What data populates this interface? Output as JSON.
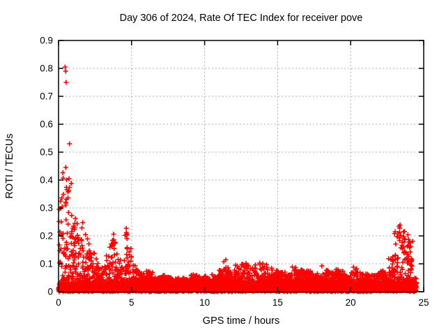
{
  "chart_data": {
    "type": "scatter",
    "title": "Day 306 of 2024, Rate Of TEC Index for receiver pove",
    "xlabel": "GPS time / hours",
    "ylabel": "ROTI / TECUs",
    "xlim": [
      0,
      25
    ],
    "ylim": [
      0,
      0.9
    ],
    "xticks": [
      0,
      5,
      10,
      15,
      20,
      25
    ],
    "xtick_labels": [
      "0",
      "5",
      "10",
      "15",
      "20",
      "25"
    ],
    "yticks": [
      0,
      0.1,
      0.2,
      0.3,
      0.4,
      0.5,
      0.6,
      0.7,
      0.8,
      0.9
    ],
    "ytick_labels": [
      "0",
      "0.1",
      "0.2",
      "0.3",
      "0.4",
      "0.5",
      "0.6",
      "0.7",
      "0.8",
      "0.9"
    ],
    "grid": true,
    "legend": "none",
    "marker": "plus",
    "marker_color": "#ff0000",
    "grid_color": "#b0b0b0",
    "border_color": "#000000",
    "background_color": "#ffffff",
    "data_start_hour": 0.0,
    "data_end_hour": 24.3,
    "base_band": {
      "min": 0.0,
      "max": 0.035,
      "note": "dense solid band of points along the bottom for all hours"
    },
    "bin_width_hours": 0.25,
    "envelope_max_roti_per_bin": [
      [
        0.0,
        0.38
      ],
      [
        0.25,
        0.45
      ],
      [
        0.5,
        0.42
      ],
      [
        0.75,
        0.4
      ],
      [
        1.0,
        0.33
      ],
      [
        1.25,
        0.28
      ],
      [
        1.5,
        0.25
      ],
      [
        1.75,
        0.21
      ],
      [
        2.0,
        0.18
      ],
      [
        2.25,
        0.15
      ],
      [
        2.5,
        0.12
      ],
      [
        2.75,
        0.09
      ],
      [
        3.0,
        0.09
      ],
      [
        3.25,
        0.13
      ],
      [
        3.5,
        0.2
      ],
      [
        3.75,
        0.22
      ],
      [
        4.0,
        0.12
      ],
      [
        4.25,
        0.1
      ],
      [
        4.5,
        0.235
      ],
      [
        4.75,
        0.16
      ],
      [
        5.0,
        0.12
      ],
      [
        5.25,
        0.08
      ],
      [
        5.5,
        0.07
      ],
      [
        5.75,
        0.065
      ],
      [
        6.0,
        0.075
      ],
      [
        6.25,
        0.07
      ],
      [
        6.5,
        0.055
      ],
      [
        6.75,
        0.05
      ],
      [
        7.0,
        0.06
      ],
      [
        7.25,
        0.055
      ],
      [
        7.5,
        0.055
      ],
      [
        7.75,
        0.05
      ],
      [
        8.0,
        0.05
      ],
      [
        8.25,
        0.045
      ],
      [
        8.5,
        0.05
      ],
      [
        8.75,
        0.045
      ],
      [
        9.0,
        0.065
      ],
      [
        9.25,
        0.06
      ],
      [
        9.5,
        0.055
      ],
      [
        9.75,
        0.05
      ],
      [
        10.0,
        0.06
      ],
      [
        10.25,
        0.055
      ],
      [
        10.5,
        0.065
      ],
      [
        10.75,
        0.06
      ],
      [
        11.0,
        0.08
      ],
      [
        11.25,
        0.115
      ],
      [
        11.5,
        0.09
      ],
      [
        11.75,
        0.085
      ],
      [
        12.0,
        0.095
      ],
      [
        12.25,
        0.09
      ],
      [
        12.5,
        0.1
      ],
      [
        12.75,
        0.12
      ],
      [
        13.0,
        0.1
      ],
      [
        13.25,
        0.105
      ],
      [
        13.5,
        0.09
      ],
      [
        13.75,
        0.105
      ],
      [
        14.0,
        0.1
      ],
      [
        14.25,
        0.09
      ],
      [
        14.5,
        0.085
      ],
      [
        14.75,
        0.08
      ],
      [
        15.0,
        0.075
      ],
      [
        15.25,
        0.07
      ],
      [
        15.5,
        0.07
      ],
      [
        15.75,
        0.065
      ],
      [
        16.0,
        0.09
      ],
      [
        16.25,
        0.08
      ],
      [
        16.5,
        0.085
      ],
      [
        16.75,
        0.075
      ],
      [
        17.0,
        0.075
      ],
      [
        17.25,
        0.07
      ],
      [
        17.5,
        0.065
      ],
      [
        17.75,
        0.06
      ],
      [
        18.0,
        0.1
      ],
      [
        18.25,
        0.08
      ],
      [
        18.5,
        0.075
      ],
      [
        18.75,
        0.07
      ],
      [
        19.0,
        0.08
      ],
      [
        19.25,
        0.075
      ],
      [
        19.5,
        0.065
      ],
      [
        19.75,
        0.06
      ],
      [
        20.0,
        0.09
      ],
      [
        20.25,
        0.085
      ],
      [
        20.5,
        0.07
      ],
      [
        20.75,
        0.065
      ],
      [
        21.0,
        0.065
      ],
      [
        21.25,
        0.06
      ],
      [
        21.5,
        0.06
      ],
      [
        21.75,
        0.065
      ],
      [
        22.0,
        0.075
      ],
      [
        22.25,
        0.07
      ],
      [
        22.5,
        0.09
      ],
      [
        22.75,
        0.13
      ],
      [
        23.0,
        0.245
      ],
      [
        23.25,
        0.25
      ],
      [
        23.5,
        0.22
      ],
      [
        23.75,
        0.21
      ],
      [
        24.0,
        0.19
      ],
      [
        24.25,
        0.05
      ]
    ],
    "outlier_points": [
      [
        0.45,
        0.805
      ],
      [
        0.48,
        0.79
      ],
      [
        0.52,
        0.75
      ],
      [
        0.75,
        0.53
      ],
      [
        0.49,
        0.445
      ],
      [
        0.72,
        0.405
      ],
      [
        22.6,
        0.118
      ],
      [
        22.65,
        0.085
      ]
    ],
    "render": {
      "scatter_per_bin": 45,
      "base_per_bin": 25,
      "decay_exponent_high": 3.5,
      "decay_exponent_low": 2.0,
      "seed": 306,
      "marker_half_px": 3.5,
      "marker_stroke_px": 1.6
    }
  }
}
